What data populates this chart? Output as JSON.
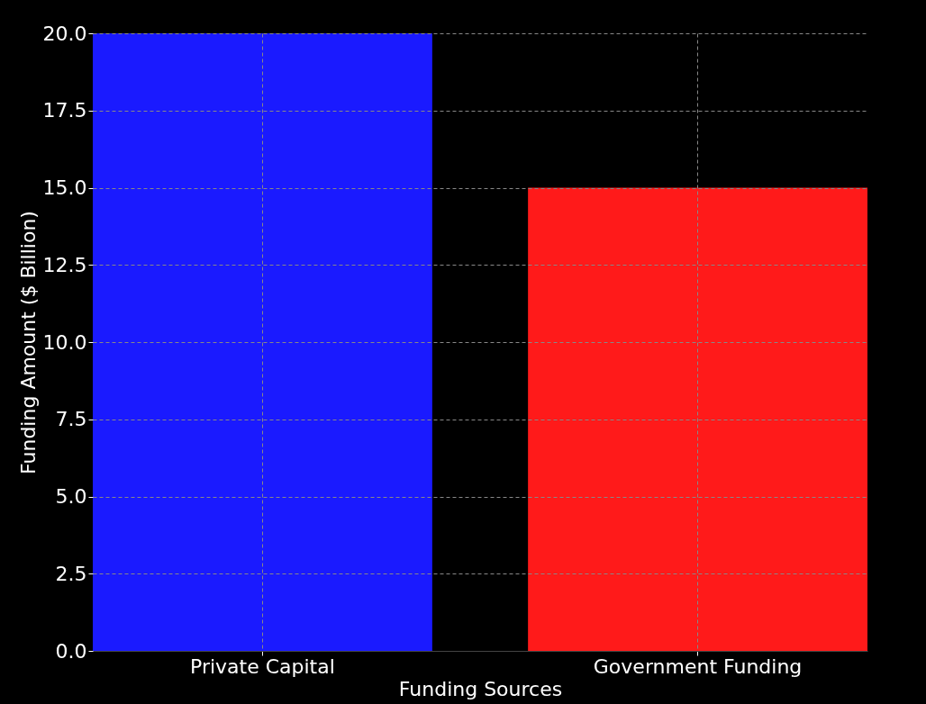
{
  "chart_data": {
    "type": "bar",
    "xlabel": "Funding Sources",
    "ylabel": "Funding Amount ($ Billion)",
    "categories": [
      "Private Capital",
      "Government Funding"
    ],
    "values": [
      20,
      15
    ],
    "colors": [
      "#1a1aff",
      "#ff1a1a"
    ],
    "ylim": [
      0,
      20
    ],
    "yticks": [
      {
        "value": 0,
        "label": "0.0"
      },
      2.5,
      {
        "value": 5,
        "label": "5.0"
      },
      7.5,
      {
        "value": 10,
        "label": "10.0"
      },
      12.5,
      {
        "value": 15,
        "label": "15.0"
      },
      17.5,
      {
        "value": 20,
        "label": "20.0"
      }
    ],
    "grid": true
  }
}
